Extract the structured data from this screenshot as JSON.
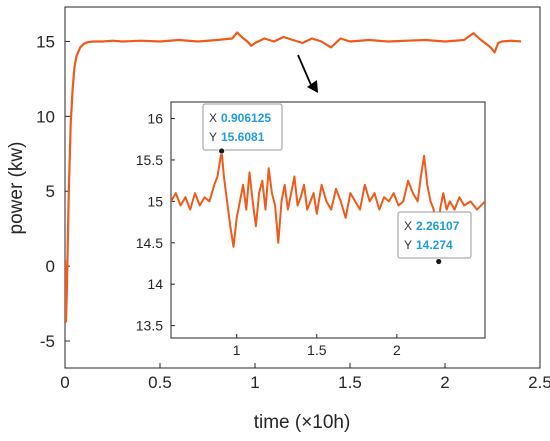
{
  "chart_data": [
    {
      "type": "line",
      "xlabel": "time (×10h)",
      "ylabel": "power (kw)",
      "xlim": [
        0,
        2.5
      ],
      "ylim": [
        -6.8,
        17.3
      ],
      "xticks": [
        "0",
        "0.5",
        "1",
        "1.5",
        "2",
        "2.5"
      ],
      "xtick_values": [
        0,
        0.5,
        1,
        1.5,
        2,
        2.5
      ],
      "yticks": [
        "-5",
        "0",
        "5",
        "10",
        "15"
      ],
      "ytick_values": [
        -5,
        0,
        5,
        10,
        15
      ],
      "grid": false,
      "color": "#f05a1a",
      "series": [
        {
          "x": [
            0,
            0.005,
            0.01,
            0.02,
            0.03,
            0.04,
            0.05,
            0.06,
            0.08,
            0.1,
            0.12,
            0.15,
            0.2,
            0.25,
            0.3,
            0.4,
            0.5,
            0.6,
            0.7,
            0.8,
            0.88,
            0.906,
            0.93,
            0.96,
            0.98,
            1.0,
            1.05,
            1.1,
            1.15,
            1.2,
            1.25,
            1.3,
            1.35,
            1.4,
            1.45,
            1.5,
            1.6,
            1.7,
            1.8,
            1.9,
            2.0,
            2.1,
            2.15,
            2.18,
            2.2,
            2.22,
            2.24,
            2.261,
            2.28,
            2.3,
            2.35,
            2.4
          ],
          "y": [
            0.4,
            -3.7,
            -1.5,
            5.0,
            9.5,
            11.8,
            13.3,
            14.0,
            14.6,
            14.85,
            14.95,
            15.0,
            15.0,
            15.05,
            15.0,
            15.05,
            15.0,
            15.1,
            15.0,
            15.1,
            15.2,
            15.6,
            15.3,
            15.0,
            14.7,
            14.9,
            15.2,
            15.0,
            15.3,
            15.1,
            14.9,
            15.2,
            15.0,
            14.6,
            15.2,
            15.0,
            15.1,
            15.0,
            15.05,
            15.1,
            15.0,
            15.1,
            15.55,
            15.2,
            15.0,
            14.8,
            14.6,
            14.27,
            14.9,
            15.0,
            15.05,
            15.0
          ]
        }
      ]
    },
    {
      "type": "line",
      "role": "inset",
      "xlim": [
        0.59,
        2.55
      ],
      "ylim": [
        13.35,
        16.2
      ],
      "xticks": [
        "1",
        "1.5",
        "2"
      ],
      "xtick_values": [
        1,
        1.5,
        2
      ],
      "yticks": [
        "13.5",
        "14",
        "14.5",
        "15",
        "15.5",
        "16"
      ],
      "ytick_values": [
        13.5,
        14,
        14.5,
        15,
        15.5,
        16
      ],
      "color": "#f05a1a",
      "series": [
        {
          "x": [
            0.59,
            0.62,
            0.65,
            0.68,
            0.71,
            0.74,
            0.77,
            0.8,
            0.83,
            0.86,
            0.88,
            0.906,
            0.92,
            0.94,
            0.96,
            0.98,
            1.0,
            1.02,
            1.04,
            1.06,
            1.08,
            1.1,
            1.12,
            1.14,
            1.16,
            1.18,
            1.2,
            1.22,
            1.24,
            1.26,
            1.28,
            1.3,
            1.32,
            1.34,
            1.36,
            1.38,
            1.4,
            1.42,
            1.44,
            1.46,
            1.48,
            1.5,
            1.53,
            1.56,
            1.59,
            1.62,
            1.65,
            1.68,
            1.71,
            1.74,
            1.77,
            1.8,
            1.83,
            1.86,
            1.89,
            1.92,
            1.95,
            1.98,
            2.01,
            2.04,
            2.07,
            2.1,
            2.13,
            2.15,
            2.17,
            2.19,
            2.21,
            2.23,
            2.245,
            2.261,
            2.27,
            2.29,
            2.31,
            2.33,
            2.36,
            2.39,
            2.42,
            2.46,
            2.5,
            2.55
          ],
          "y": [
            15.0,
            15.1,
            14.95,
            15.05,
            14.9,
            15.1,
            14.95,
            15.05,
            15.0,
            15.2,
            15.3,
            15.61,
            15.3,
            15.0,
            14.7,
            14.45,
            14.8,
            15.0,
            15.2,
            14.9,
            15.35,
            15.0,
            14.7,
            15.1,
            15.25,
            14.9,
            15.4,
            15.1,
            14.95,
            14.5,
            15.0,
            15.2,
            14.9,
            15.1,
            15.3,
            14.95,
            15.05,
            15.2,
            14.9,
            15.0,
            15.1,
            14.85,
            15.2,
            15.0,
            14.9,
            15.15,
            15.0,
            14.8,
            15.1,
            15.0,
            14.9,
            15.2,
            15.0,
            15.1,
            14.9,
            15.05,
            15.0,
            15.1,
            14.95,
            15.0,
            15.25,
            15.1,
            15.0,
            15.3,
            15.55,
            15.2,
            15.0,
            14.9,
            14.6,
            14.27,
            14.9,
            15.1,
            14.9,
            15.0,
            14.9,
            15.05,
            14.95,
            15.0,
            14.9,
            15.0
          ]
        }
      ],
      "datatips": [
        {
          "x_label": "X",
          "x_value": "0.906125",
          "y_label": "Y",
          "y_value": "15.6081",
          "x": 0.906125,
          "y": 15.6081
        },
        {
          "x_label": "X",
          "x_value": "2.26107",
          "y_label": "Y",
          "y_value": "14.274",
          "x": 2.26107,
          "y": 14.274
        }
      ]
    }
  ]
}
